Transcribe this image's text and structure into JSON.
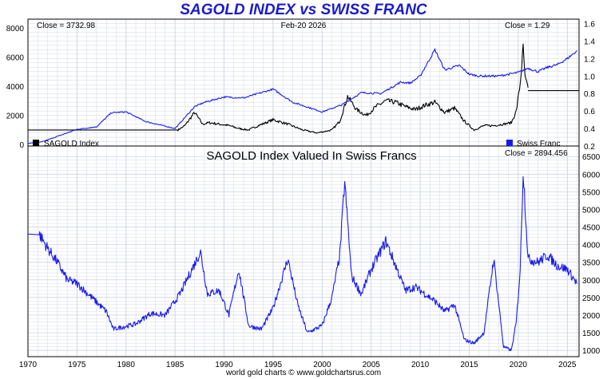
{
  "title": "SAGOLD INDEX vs SWISS FRANC",
  "footer": "world gold charts © www.goldchartsrus.com",
  "colors": {
    "gold_series": "#000000",
    "franc_series": "#1a1aee",
    "grid": "#c8d4e4",
    "title": "#1a1acc"
  },
  "chart_data": [
    {
      "type": "line",
      "date": "Feb-20 2026",
      "left_close_label": "Close = 3732.98",
      "right_close_label": "Close = 1.29",
      "left_axis": {
        "ticks": [
          0,
          2000,
          4000,
          6000,
          8000
        ],
        "ylim": [
          -100,
          8600
        ]
      },
      "right_axis": {
        "ticks": [
          0.2,
          0.4,
          0.6,
          0.8,
          1.0,
          1.2,
          1.4,
          1.6
        ],
        "ylim": [
          0.2,
          1.65
        ]
      },
      "x_ticks": [
        1970,
        1975,
        1980,
        1985,
        1990,
        1995,
        2000,
        2005,
        2010,
        2015,
        2020,
        2025
      ],
      "xlim": [
        1970,
        2026.2
      ],
      "grid": true,
      "legend": [
        {
          "name": "SAGOLD Index",
          "position": "bottom-left",
          "color": "#000000"
        },
        {
          "name": "Swiss Franc",
          "position": "bottom-right",
          "color": "#1a1aee"
        }
      ],
      "series": [
        {
          "name": "SAGOLD Index",
          "axis": "left",
          "x": [
            1970,
            1985.3,
            1986.0,
            1987.0,
            1987.8,
            1988.5,
            1989.5,
            1990.5,
            1991.5,
            1992.5,
            1993.5,
            1995,
            1996.5,
            1998,
            1999.5,
            2001,
            2001.8,
            2002.6,
            2003.5,
            2004.5,
            2005.5,
            2006.5,
            2007.5,
            2008.5,
            2009.5,
            2010.5,
            2011.5,
            2012.5,
            2013.5,
            2014.5,
            2015.5,
            2016.5,
            2017.5,
            2018.5,
            2019.3,
            2019.8,
            2020.2,
            2020.5,
            2020.7,
            2021.0
          ],
          "values": [
            1000,
            1000,
            1300,
            2200,
            1400,
            1500,
            1400,
            1300,
            1100,
            1000,
            1300,
            1700,
            1400,
            1000,
            800,
            1000,
            1600,
            3300,
            2400,
            2000,
            2600,
            3000,
            2900,
            2600,
            2400,
            2700,
            2900,
            2200,
            2500,
            1600,
            1000,
            1300,
            1300,
            1400,
            1500,
            2300,
            4200,
            6600,
            4500,
            3900
          ]
        },
        {
          "name": "Swiss Franc",
          "axis": "right",
          "x": [
            1970,
            1971.5,
            1973,
            1975,
            1977,
            1978.5,
            1980,
            1982,
            1985,
            1987,
            1988,
            1990,
            1992,
            1995,
            1997,
            2000,
            2002,
            2004,
            2006,
            2008,
            2009,
            2010,
            2011.5,
            2012.5,
            2014,
            2015,
            2016,
            2018,
            2020,
            2021,
            2022,
            2023,
            2024,
            2025,
            2026
          ],
          "values": [
            0.23,
            0.25,
            0.31,
            0.39,
            0.42,
            0.58,
            0.59,
            0.48,
            0.4,
            0.65,
            0.7,
            0.76,
            0.75,
            0.85,
            0.7,
            0.59,
            0.67,
            0.81,
            0.8,
            0.93,
            0.92,
            1.0,
            1.3,
            1.07,
            1.12,
            1.02,
            1.0,
            1.0,
            1.04,
            1.09,
            1.05,
            1.1,
            1.13,
            1.2,
            1.29
          ]
        }
      ]
    },
    {
      "type": "line",
      "title": "SAGOLD Index Valued In Swiss Francs",
      "close_label": "Close = 2894.456",
      "y_ticks": [
        1000,
        1500,
        2000,
        2500,
        3000,
        3500,
        4000,
        4500,
        5000,
        5500,
        6000,
        6500
      ],
      "ylim": [
        820,
        6800
      ],
      "x_ticks": [
        1970,
        1975,
        1980,
        1985,
        1990,
        1995,
        2000,
        2005,
        2010,
        2015,
        2020,
        2025
      ],
      "xlim": [
        1970,
        2026.2
      ],
      "grid": true,
      "series": [
        {
          "name": "SAGOLD Index Valued In Swiss Francs",
          "x": [
            1970,
            1971.2,
            1972,
            1973,
            1974,
            1975,
            1976.5,
            1978,
            1978.7,
            1979.5,
            1981,
            1982.5,
            1984,
            1985.5,
            1987.6,
            1988.3,
            1989.5,
            1990.5,
            1991.5,
            1992.5,
            1993.8,
            1995,
            1996.5,
            1997.5,
            1998.5,
            2000,
            2001,
            2001.8,
            2002.3,
            2003,
            2004,
            2005,
            2006.5,
            2007.5,
            2008.5,
            2009.5,
            2010.5,
            2011.5,
            2012.5,
            2013.5,
            2014.5,
            2015.5,
            2016.5,
            2017.5,
            2018.5,
            2019.3,
            2019.8,
            2020.2,
            2020.5,
            2021.0,
            2022,
            2023,
            2024,
            2025,
            2026
          ],
          "values": [
            4300,
            4280,
            3900,
            3500,
            3000,
            2900,
            2500,
            2100,
            1600,
            1650,
            1750,
            2050,
            2000,
            2600,
            3800,
            2600,
            2700,
            2000,
            3300,
            1700,
            1600,
            2200,
            3600,
            2300,
            1500,
            1700,
            2500,
            3700,
            5800,
            3100,
            2600,
            3300,
            4100,
            3400,
            2700,
            2800,
            2600,
            2400,
            2100,
            2300,
            1300,
            1200,
            1500,
            3600,
            1100,
            1000,
            1800,
            3300,
            6100,
            3600,
            3500,
            3700,
            3400,
            3300,
            2894
          ]
        }
      ]
    }
  ]
}
